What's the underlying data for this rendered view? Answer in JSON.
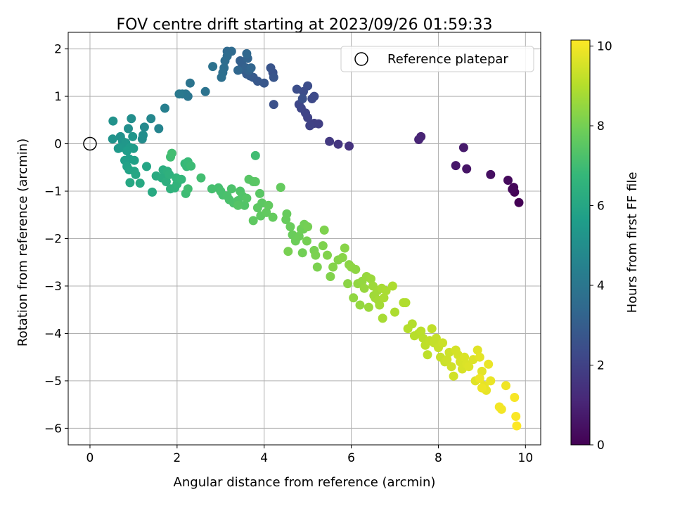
{
  "chart_data": {
    "type": "scatter",
    "title": "FOV centre drift starting at 2023/09/26 01:59:33",
    "xlabel": "Angular distance from reference (arcmin)",
    "ylabel": "Rotation from reference (arcmin)",
    "xlim": [
      -0.5,
      10.35
    ],
    "ylim": [
      -6.35,
      2.35
    ],
    "xticks": [
      0,
      2,
      4,
      6,
      8,
      10
    ],
    "yticks": [
      -6,
      -5,
      -4,
      -3,
      -2,
      -1,
      0,
      1,
      2
    ],
    "grid": true,
    "legend": {
      "placement": "top-right",
      "entries": [
        "Reference platepar"
      ]
    },
    "reference": {
      "x": 0,
      "y": 0
    },
    "colorbar": {
      "label": "Hours from first FF file",
      "colormap": "viridis",
      "range": [
        0,
        10.15
      ],
      "ticks": [
        0,
        2,
        4,
        6,
        8,
        10
      ]
    },
    "series": [
      {
        "name": "FOV centre",
        "points": [
          [
            9.85,
            -1.24,
            0.0
          ],
          [
            9.75,
            -1.02,
            0.1
          ],
          [
            9.73,
            -0.92,
            0.15
          ],
          [
            9.7,
            -0.96,
            0.2
          ],
          [
            9.6,
            -0.77,
            0.25
          ],
          [
            9.2,
            -0.65,
            0.4
          ],
          [
            8.65,
            -0.53,
            0.55
          ],
          [
            8.4,
            -0.46,
            0.65
          ],
          [
            8.58,
            -0.08,
            0.75
          ],
          [
            7.6,
            0.15,
            1.0
          ],
          [
            7.55,
            0.09,
            1.05
          ],
          [
            5.95,
            -0.05,
            1.5
          ],
          [
            5.7,
            -0.01,
            1.6
          ],
          [
            5.5,
            0.05,
            1.7
          ],
          [
            5.25,
            0.42,
            1.9
          ],
          [
            5.15,
            0.43,
            1.95
          ],
          [
            5.05,
            0.38,
            2.0
          ],
          [
            5.0,
            0.55,
            2.05
          ],
          [
            4.95,
            0.65,
            2.1
          ],
          [
            4.85,
            0.75,
            2.15
          ],
          [
            4.8,
            0.83,
            2.2
          ],
          [
            5.1,
            0.95,
            2.25
          ],
          [
            5.15,
            1.0,
            2.3
          ],
          [
            4.9,
            1.1,
            2.35
          ],
          [
            5.0,
            1.22,
            2.4
          ],
          [
            4.75,
            1.15,
            2.45
          ],
          [
            4.88,
            0.95,
            2.5
          ],
          [
            4.22,
            0.83,
            2.55
          ],
          [
            4.2,
            1.5,
            2.6
          ],
          [
            4.15,
            1.6,
            2.65
          ],
          [
            4.22,
            1.4,
            2.7
          ],
          [
            4.0,
            1.28,
            2.75
          ],
          [
            3.85,
            1.32,
            2.8
          ],
          [
            3.75,
            1.4,
            2.85
          ],
          [
            3.68,
            1.43,
            2.9
          ],
          [
            3.6,
            1.47,
            2.95
          ],
          [
            3.55,
            1.55,
            3.0
          ],
          [
            3.5,
            1.65,
            3.05
          ],
          [
            3.45,
            1.75,
            3.1
          ],
          [
            3.58,
            1.6,
            3.15
          ],
          [
            3.65,
            1.55,
            3.2
          ],
          [
            3.62,
            1.8,
            3.25
          ],
          [
            3.7,
            1.6,
            3.3
          ],
          [
            3.4,
            1.55,
            3.35
          ],
          [
            3.6,
            1.9,
            3.4
          ],
          [
            3.15,
            1.95,
            3.45
          ],
          [
            3.25,
            1.95,
            3.5
          ],
          [
            3.15,
            1.85,
            3.55
          ],
          [
            3.1,
            1.75,
            3.6
          ],
          [
            3.08,
            1.6,
            3.65
          ],
          [
            3.05,
            1.5,
            3.7
          ],
          [
            3.02,
            1.4,
            3.75
          ],
          [
            2.82,
            1.63,
            3.8
          ],
          [
            2.65,
            1.1,
            3.85
          ],
          [
            2.3,
            1.28,
            3.9
          ],
          [
            2.25,
            1.0,
            3.95
          ],
          [
            2.2,
            1.05,
            4.0
          ],
          [
            2.12,
            1.05,
            4.05
          ],
          [
            2.05,
            1.05,
            4.1
          ],
          [
            1.72,
            0.75,
            4.4
          ],
          [
            1.58,
            0.32,
            4.6
          ],
          [
            1.4,
            0.53,
            4.7
          ],
          [
            1.25,
            0.35,
            4.8
          ],
          [
            1.2,
            0.1,
            4.9
          ],
          [
            1.22,
            0.18,
            4.95
          ],
          [
            0.95,
            0.53,
            5.0
          ],
          [
            0.88,
            0.32,
            5.05
          ],
          [
            0.7,
            0.15,
            5.1
          ],
          [
            0.53,
            0.48,
            5.15
          ],
          [
            0.52,
            0.1,
            5.2
          ],
          [
            0.75,
            0.05,
            5.25
          ],
          [
            0.98,
            0.15,
            5.3
          ],
          [
            0.82,
            0.02,
            5.35
          ],
          [
            0.7,
            -0.08,
            5.4
          ],
          [
            0.65,
            -0.1,
            5.45
          ],
          [
            0.92,
            -0.08,
            5.5
          ],
          [
            1.0,
            -0.1,
            5.55
          ],
          [
            0.85,
            -0.15,
            5.6
          ],
          [
            0.9,
            -0.32,
            5.65
          ],
          [
            0.8,
            -0.35,
            5.7
          ],
          [
            1.02,
            -0.35,
            5.75
          ],
          [
            0.85,
            -0.48,
            5.8
          ],
          [
            0.9,
            -0.55,
            5.85
          ],
          [
            1.02,
            -0.58,
            5.9
          ],
          [
            1.3,
            -0.48,
            5.95
          ],
          [
            1.05,
            -0.65,
            6.0
          ],
          [
            0.92,
            -0.82,
            6.05
          ],
          [
            1.15,
            -0.83,
            6.1
          ],
          [
            1.43,
            -1.02,
            6.15
          ],
          [
            1.52,
            -0.68,
            6.2
          ],
          [
            1.65,
            -0.72,
            6.25
          ],
          [
            1.68,
            -0.55,
            6.3
          ],
          [
            1.75,
            -0.8,
            6.35
          ],
          [
            1.78,
            -0.58,
            6.4
          ],
          [
            1.82,
            -0.65,
            6.45
          ],
          [
            1.85,
            -0.95,
            6.5
          ],
          [
            1.95,
            -0.93,
            6.55
          ],
          [
            2.0,
            -0.85,
            6.6
          ],
          [
            1.98,
            -0.72,
            6.65
          ],
          [
            2.1,
            -0.75,
            6.7
          ],
          [
            2.18,
            -0.42,
            6.75
          ],
          [
            2.22,
            -0.48,
            6.8
          ],
          [
            2.25,
            -0.38,
            6.85
          ],
          [
            2.32,
            -0.47,
            6.9
          ],
          [
            2.2,
            -1.05,
            6.95
          ],
          [
            2.25,
            -0.95,
            7.0
          ],
          [
            1.85,
            -0.28,
            7.0
          ],
          [
            1.88,
            -0.2,
            7.05
          ],
          [
            2.55,
            -0.72,
            7.05
          ],
          [
            2.8,
            -0.95,
            7.1
          ],
          [
            2.95,
            -0.93,
            7.1
          ],
          [
            3.0,
            -1.0,
            7.15
          ],
          [
            3.05,
            -1.08,
            7.15
          ],
          [
            3.15,
            -1.1,
            7.2
          ],
          [
            3.2,
            -1.18,
            7.2
          ],
          [
            3.25,
            -0.95,
            7.25
          ],
          [
            3.3,
            -1.25,
            7.25
          ],
          [
            3.4,
            -1.2,
            7.3
          ],
          [
            3.45,
            -1.0,
            7.3
          ],
          [
            3.5,
            -1.1,
            7.35
          ],
          [
            3.55,
            -1.3,
            7.35
          ],
          [
            3.6,
            -1.15,
            7.4
          ],
          [
            3.4,
            -1.3,
            7.4
          ],
          [
            3.65,
            -0.75,
            7.45
          ],
          [
            3.75,
            -0.8,
            7.45
          ],
          [
            3.8,
            -0.8,
            7.5
          ],
          [
            3.9,
            -1.05,
            7.5
          ],
          [
            3.95,
            -1.25,
            7.55
          ],
          [
            3.85,
            -1.35,
            7.55
          ],
          [
            3.92,
            -1.52,
            7.6
          ],
          [
            3.75,
            -1.62,
            7.6
          ],
          [
            3.8,
            -0.25,
            7.0
          ],
          [
            4.05,
            -1.45,
            7.65
          ],
          [
            4.1,
            -1.3,
            7.65
          ],
          [
            4.2,
            -1.55,
            7.7
          ],
          [
            4.38,
            -0.92,
            7.7
          ],
          [
            4.5,
            -1.6,
            7.75
          ],
          [
            4.52,
            -1.48,
            7.75
          ],
          [
            4.6,
            -1.75,
            7.8
          ],
          [
            4.65,
            -1.92,
            7.8
          ],
          [
            4.72,
            -2.05,
            7.85
          ],
          [
            4.8,
            -1.95,
            7.85
          ],
          [
            4.85,
            -1.8,
            7.9
          ],
          [
            4.9,
            -1.8,
            7.9
          ],
          [
            4.92,
            -1.7,
            7.95
          ],
          [
            4.88,
            -2.3,
            7.95
          ],
          [
            5.0,
            -1.75,
            8.0
          ],
          [
            4.98,
            -2.05,
            8.0
          ],
          [
            4.55,
            -2.27,
            8.05
          ],
          [
            5.15,
            -2.25,
            8.05
          ],
          [
            5.18,
            -2.35,
            8.1
          ],
          [
            5.22,
            -2.6,
            8.1
          ],
          [
            5.35,
            -2.15,
            8.15
          ],
          [
            5.38,
            -1.82,
            8.15
          ],
          [
            5.45,
            -2.35,
            8.2
          ],
          [
            5.52,
            -2.8,
            8.2
          ],
          [
            5.58,
            -2.6,
            8.25
          ],
          [
            5.7,
            -2.45,
            8.25
          ],
          [
            5.8,
            -2.4,
            8.3
          ],
          [
            5.85,
            -2.2,
            8.3
          ],
          [
            5.95,
            -2.55,
            8.35
          ],
          [
            5.92,
            -2.95,
            8.35
          ],
          [
            6.0,
            -2.6,
            8.4
          ],
          [
            6.1,
            -2.65,
            8.4
          ],
          [
            6.05,
            -3.25,
            8.45
          ],
          [
            6.15,
            -2.95,
            8.45
          ],
          [
            6.25,
            -2.9,
            8.5
          ],
          [
            6.2,
            -3.4,
            8.5
          ],
          [
            6.3,
            -3.05,
            8.55
          ],
          [
            6.35,
            -2.8,
            8.55
          ],
          [
            6.4,
            -3.45,
            8.6
          ],
          [
            6.45,
            -2.85,
            8.6
          ],
          [
            6.5,
            -3.0,
            8.65
          ],
          [
            6.52,
            -3.2,
            8.65
          ],
          [
            6.55,
            -3.25,
            8.7
          ],
          [
            6.6,
            -3.1,
            8.7
          ],
          [
            6.62,
            -3.3,
            8.75
          ],
          [
            6.65,
            -3.4,
            8.75
          ],
          [
            6.7,
            -3.05,
            8.8
          ],
          [
            6.72,
            -3.68,
            8.8
          ],
          [
            6.75,
            -3.25,
            8.85
          ],
          [
            6.8,
            -3.1,
            8.85
          ],
          [
            6.95,
            -3.0,
            8.9
          ],
          [
            7.0,
            -3.55,
            8.9
          ],
          [
            7.2,
            -3.35,
            8.95
          ],
          [
            7.25,
            -3.35,
            8.95
          ],
          [
            7.3,
            -3.9,
            9.0
          ],
          [
            7.4,
            -3.8,
            9.0
          ],
          [
            7.45,
            -4.05,
            9.05
          ],
          [
            7.55,
            -4.0,
            9.05
          ],
          [
            7.6,
            -3.95,
            9.1
          ],
          [
            7.65,
            -4.1,
            9.1
          ],
          [
            7.7,
            -4.25,
            9.15
          ],
          [
            7.75,
            -4.45,
            9.15
          ],
          [
            7.8,
            -4.15,
            9.2
          ],
          [
            7.85,
            -3.9,
            9.2
          ],
          [
            7.9,
            -4.2,
            9.25
          ],
          [
            7.95,
            -4.1,
            9.25
          ],
          [
            8.0,
            -4.3,
            9.3
          ],
          [
            8.05,
            -4.5,
            9.3
          ],
          [
            8.1,
            -4.2,
            9.35
          ],
          [
            8.15,
            -4.6,
            9.35
          ],
          [
            8.2,
            -4.55,
            9.4
          ],
          [
            8.25,
            -4.4,
            9.4
          ],
          [
            8.3,
            -4.7,
            9.45
          ],
          [
            8.35,
            -4.9,
            9.45
          ],
          [
            8.4,
            -4.35,
            9.5
          ],
          [
            8.45,
            -4.45,
            9.5
          ],
          [
            8.5,
            -4.6,
            9.55
          ],
          [
            8.55,
            -4.75,
            9.55
          ],
          [
            8.6,
            -4.5,
            9.6
          ],
          [
            8.65,
            -4.65,
            9.6
          ],
          [
            8.7,
            -4.7,
            9.65
          ],
          [
            8.8,
            -4.55,
            9.65
          ],
          [
            8.85,
            -5.0,
            9.7
          ],
          [
            8.9,
            -4.35,
            9.7
          ],
          [
            8.95,
            -4.5,
            9.75
          ],
          [
            9.0,
            -4.8,
            9.75
          ],
          [
            9.05,
            -5.1,
            9.8
          ],
          [
            9.1,
            -5.2,
            9.8
          ],
          [
            9.15,
            -4.65,
            9.85
          ],
          [
            9.2,
            -5.0,
            9.85
          ],
          [
            8.95,
            -4.95,
            9.9
          ],
          [
            9.0,
            -5.15,
            9.9
          ],
          [
            9.55,
            -5.1,
            9.95
          ],
          [
            9.4,
            -5.55,
            10.0
          ],
          [
            9.45,
            -5.6,
            10.0
          ],
          [
            9.75,
            -5.35,
            10.05
          ],
          [
            9.78,
            -5.75,
            10.1
          ],
          [
            9.8,
            -5.95,
            10.15
          ]
        ]
      }
    ]
  }
}
